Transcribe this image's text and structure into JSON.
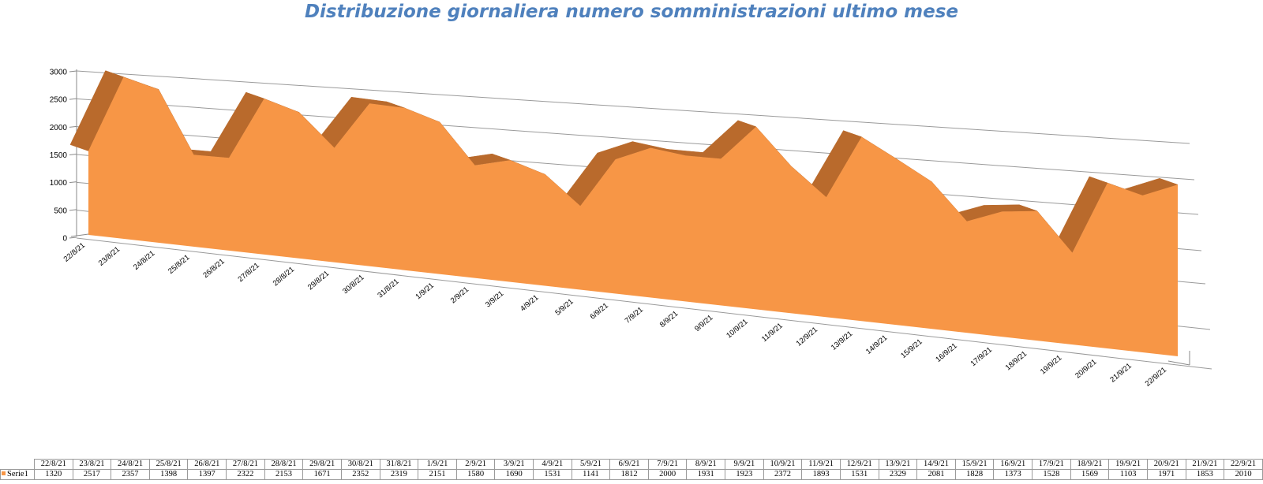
{
  "chart_data": {
    "type": "area",
    "title": "Distribuzione giornaliera numero somministrazioni ultimo mese",
    "categories": [
      "22/8/21",
      "23/8/21",
      "24/8/21",
      "25/8/21",
      "26/8/21",
      "27/8/21",
      "28/8/21",
      "29/8/21",
      "30/8/21",
      "31/8/21",
      "1/9/21",
      "2/9/21",
      "3/9/21",
      "4/9/21",
      "5/9/21",
      "6/9/21",
      "7/9/21",
      "8/9/21",
      "9/9/21",
      "10/9/21",
      "11/9/21",
      "12/9/21",
      "13/9/21",
      "14/9/21",
      "15/9/21",
      "16/9/21",
      "17/9/21",
      "18/9/21",
      "19/9/21",
      "20/9/21",
      "21/9/21",
      "22/9/21"
    ],
    "series": [
      {
        "name": "Serie1",
        "values": [
          1320,
          2517,
          2357,
          1398,
          1397,
          2322,
          2153,
          1671,
          2352,
          2319,
          2151,
          1580,
          1690,
          1531,
          1141,
          1812,
          2000,
          1931,
          1923,
          2372,
          1893,
          1531,
          2329,
          2081,
          1828,
          1373,
          1528,
          1569,
          1103,
          1971,
          1853,
          2010
        ]
      }
    ],
    "y_ticks": [
      "0",
      "500",
      "1000",
      "1500",
      "2000",
      "2500",
      "3000"
    ],
    "ylim": [
      0,
      3000
    ],
    "grid": true,
    "legend": "data table",
    "color": "#f79646",
    "side_color": "#b96a2c"
  }
}
